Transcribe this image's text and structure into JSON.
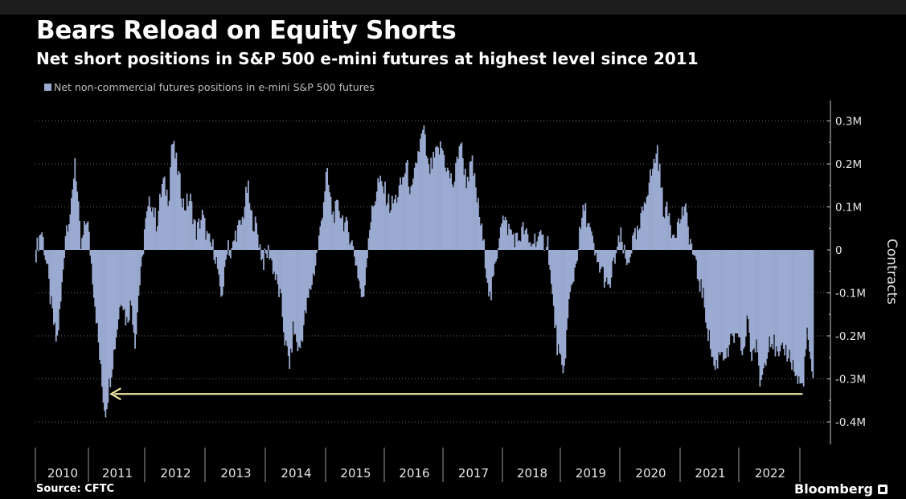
{
  "header": {
    "title": "Bears Reload on Equity Shorts",
    "subtitle": "Net short positions in S&P 500 e-mini futures at highest level since 2011"
  },
  "footer": {
    "source": "Source: CFTC",
    "brand": "Bloomberg"
  },
  "colors": {
    "series": "#9aaad0",
    "arrow": "#f3e7a6",
    "background": "#000000",
    "text": "#ffffff",
    "grid": "#6b6b6b"
  },
  "chart_data": {
    "type": "area",
    "title": "Bears Reload on Equity Shorts",
    "subtitle": "Net short positions in S&P 500 e-mini futures at highest level since 2011",
    "ylabel": "Contracts",
    "ylim": [
      -0.45,
      0.35
    ],
    "y_ticks": [
      0.3,
      0.2,
      0.1,
      0,
      -0.1,
      -0.2,
      -0.3,
      -0.4
    ],
    "y_tick_labels": [
      "0.3M",
      "0.2M",
      "0.1M",
      "0",
      "-0.1M",
      "-0.2M",
      "-0.3M",
      "-0.4M"
    ],
    "x_tick_labels": [
      "2010",
      "2011",
      "2012",
      "2013",
      "2014",
      "2015",
      "2016",
      "2017",
      "2018",
      "2019",
      "2020",
      "2021",
      "2022"
    ],
    "xlim": [
      2010.0,
      2022.83
    ],
    "grid": "horizontal dotted",
    "legend_position": "top-left",
    "series": [
      {
        "name": "Net non-commercial futures positions in e-mini S&P 500 futures",
        "x": [
          2010.0,
          2010.1,
          2010.2,
          2010.25,
          2010.35,
          2010.42,
          2010.5,
          2010.6,
          2010.65,
          2010.75,
          2010.85,
          2011.0,
          2011.1,
          2011.15,
          2011.25,
          2011.33,
          2011.42,
          2011.5,
          2011.58,
          2011.65,
          2011.7,
          2011.75,
          2011.8,
          2011.9,
          2012.0,
          2012.1,
          2012.2,
          2012.25,
          2012.35,
          2012.45,
          2012.55,
          2012.65,
          2012.75,
          2012.85,
          2012.95,
          2013.0,
          2013.05,
          2013.12,
          2013.17,
          2013.22,
          2013.3,
          2013.4,
          2013.5,
          2013.55,
          2013.65,
          2013.75,
          2013.85,
          2013.95,
          2014.05,
          2014.12,
          2014.2,
          2014.25,
          2014.35,
          2014.45,
          2014.55,
          2014.62,
          2014.7,
          2014.8,
          2014.9,
          2015.0,
          2015.1,
          2015.2,
          2015.3,
          2015.4,
          2015.5,
          2015.6,
          2015.65,
          2015.75,
          2015.85,
          2015.95,
          2016.05,
          2016.12,
          2016.2,
          2016.3,
          2016.4,
          2016.48,
          2016.55,
          2016.6,
          2016.7,
          2016.8,
          2016.9,
          2017.0,
          2017.1,
          2017.2,
          2017.3,
          2017.4,
          2017.5,
          2017.6,
          2017.68,
          2017.75,
          2017.85,
          2017.95,
          2018.05,
          2018.15,
          2018.25,
          2018.35,
          2018.45,
          2018.5,
          2018.6,
          2018.7,
          2018.8,
          2018.9,
          2019.0,
          2019.05,
          2019.15,
          2019.25,
          2019.35,
          2019.45,
          2019.55,
          2019.65,
          2019.75,
          2019.85,
          2019.95,
          2020.05,
          2020.12,
          2020.2,
          2020.25,
          2020.35,
          2020.45,
          2020.5,
          2020.6,
          2020.7,
          2020.8,
          2020.9,
          2021.0,
          2021.1,
          2021.2,
          2021.3,
          2021.4,
          2021.5,
          2021.6,
          2021.68,
          2021.75,
          2021.8,
          2021.88,
          2021.95,
          2022.0,
          2022.05,
          2022.1,
          2022.18,
          2022.25,
          2022.35,
          2022.45,
          2022.55,
          2022.65,
          2022.72,
          2022.78,
          2022.8,
          2022.82
        ],
        "values": [
          -0.01,
          0.05,
          -0.05,
          -0.12,
          -0.22,
          -0.12,
          0.05,
          0.1,
          0.22,
          0.0,
          0.08,
          -0.15,
          -0.32,
          -0.38,
          -0.28,
          -0.2,
          -0.1,
          -0.17,
          -0.12,
          -0.22,
          -0.1,
          -0.05,
          0.05,
          0.12,
          0.06,
          0.16,
          0.12,
          0.26,
          0.18,
          0.1,
          0.12,
          0.04,
          0.08,
          0.02,
          0.0,
          -0.04,
          -0.12,
          -0.06,
          0.03,
          -0.02,
          0.04,
          0.06,
          0.15,
          0.08,
          0.05,
          -0.03,
          0.0,
          -0.06,
          -0.12,
          -0.22,
          -0.27,
          -0.18,
          -0.24,
          -0.15,
          -0.08,
          -0.03,
          0.05,
          0.18,
          0.08,
          0.1,
          0.06,
          0.03,
          -0.04,
          -0.13,
          0.05,
          0.12,
          0.16,
          0.14,
          0.1,
          0.12,
          0.16,
          0.2,
          0.12,
          0.22,
          0.28,
          0.18,
          0.2,
          0.22,
          0.24,
          0.18,
          0.15,
          0.26,
          0.16,
          0.2,
          0.1,
          0.0,
          -0.12,
          -0.02,
          0.08,
          0.06,
          0.04,
          0.02,
          0.05,
          0.01,
          0.03,
          0.02,
          0.02,
          -0.08,
          -0.22,
          -0.3,
          -0.12,
          -0.04,
          0.06,
          0.1,
          0.04,
          -0.03,
          -0.05,
          -0.1,
          -0.02,
          0.03,
          -0.04,
          0.02,
          0.04,
          0.12,
          0.16,
          0.2,
          0.24,
          0.1,
          0.08,
          0.04,
          0.06,
          0.1,
          0.02,
          -0.05,
          -0.1,
          -0.2,
          -0.28,
          -0.23,
          -0.25,
          -0.2,
          -0.22,
          -0.24,
          -0.15,
          -0.25,
          -0.22,
          -0.31,
          -0.28,
          -0.24,
          -0.2,
          -0.22,
          -0.26,
          -0.23,
          -0.25,
          -0.3,
          -0.32,
          -0.2,
          -0.25,
          -0.3,
          -0.32
        ]
      }
    ],
    "annotation": {
      "type": "arrow",
      "label": "",
      "from": {
        "x": 2022.65,
        "y": -0.335
      },
      "to": {
        "x": 2011.25,
        "y": -0.335
      }
    }
  }
}
